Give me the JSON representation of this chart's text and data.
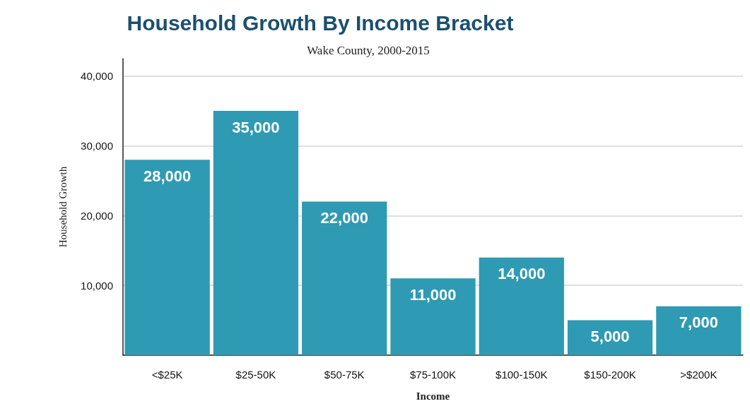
{
  "chart_data": {
    "type": "bar",
    "title": "Household Growth By Income Bracket",
    "subtitle": "Wake County, 2000-2015",
    "xlabel": "Income",
    "ylabel": "Household Growth",
    "categories": [
      "<$25K",
      "$25-50K",
      "$50-75K",
      "$75-100K",
      "$100-150K",
      "$150-200K",
      ">$200K"
    ],
    "values": [
      28000,
      35000,
      22000,
      11000,
      14000,
      5000,
      7000
    ],
    "value_labels": [
      "28,000",
      "35,000",
      "22,000",
      "11,000",
      "14,000",
      "5,000",
      "7,000"
    ],
    "color": "#2e9ab3",
    "ylim": [
      0,
      42500
    ],
    "yticks": [
      {
        "value": 0,
        "label": null
      },
      {
        "value": 10000,
        "label": "10,000"
      },
      {
        "value": 20000,
        "label": "20,000"
      },
      {
        "value": 30000,
        "label": "30,000"
      },
      {
        "value": 40000,
        "label": "40,000"
      }
    ],
    "grid": "y"
  }
}
